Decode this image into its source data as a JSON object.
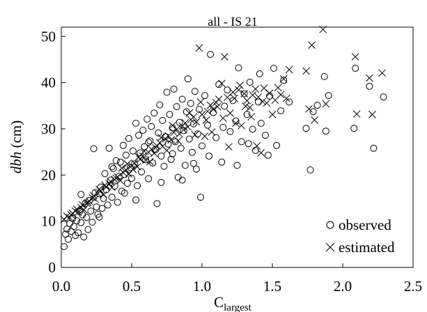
{
  "chart_data": {
    "type": "scatter",
    "title": "all - IS 21",
    "xlabel": {
      "base": "C",
      "sub": "largest"
    },
    "ylabel": {
      "italic": "dbh",
      "rest": " (cm)"
    },
    "xlim": [
      0,
      2.5
    ],
    "ylim": [
      0,
      52
    ],
    "xticks": [
      "0.0",
      "0.5",
      "1.0",
      "1.5",
      "2.0",
      "2.5"
    ],
    "yticks": [
      "0",
      "10",
      "20",
      "30",
      "40",
      "50"
    ],
    "legend": {
      "position": "bottom-right"
    },
    "series": [
      {
        "name": "observed",
        "marker": "circle",
        "points": [
          [
            0.02,
            4.5
          ],
          [
            0.03,
            7.2
          ],
          [
            0.04,
            8.3
          ],
          [
            0.05,
            6.1
          ],
          [
            0.06,
            9.5
          ],
          [
            0.07,
            7.8
          ],
          [
            0.08,
            10.6
          ],
          [
            0.09,
            8.9
          ],
          [
            0.1,
            6.9
          ],
          [
            0.11,
            10.1
          ],
          [
            0.12,
            7.5
          ],
          [
            0.13,
            12.1
          ],
          [
            0.14,
            9.7
          ],
          [
            0.15,
            11.4
          ],
          [
            0.16,
            6.6
          ],
          [
            0.17,
            13.8
          ],
          [
            0.18,
            10.8
          ],
          [
            0.19,
            8.2
          ],
          [
            0.2,
            14.5
          ],
          [
            0.21,
            12.2
          ],
          [
            0.22,
            9.8
          ],
          [
            0.23,
            25.7
          ],
          [
            0.24,
            16.2
          ],
          [
            0.25,
            13.1
          ],
          [
            0.26,
            11.5
          ],
          [
            0.27,
            15.9
          ],
          [
            0.28,
            17.4
          ],
          [
            0.29,
            12.8
          ],
          [
            0.3,
            14.9
          ],
          [
            0.31,
            20.3
          ],
          [
            0.32,
            16.8
          ],
          [
            0.33,
            13.5
          ],
          [
            0.34,
            25.8
          ],
          [
            0.35,
            18.9
          ],
          [
            0.36,
            15.2
          ],
          [
            0.37,
            21.4
          ],
          [
            0.38,
            17.6
          ],
          [
            0.39,
            23.1
          ],
          [
            0.4,
            14.1
          ],
          [
            0.41,
            19.7
          ],
          [
            0.42,
            22.8
          ],
          [
            0.43,
            16.5
          ],
          [
            0.44,
            26.4
          ],
          [
            0.45,
            20.1
          ],
          [
            0.46,
            24.3
          ],
          [
            0.47,
            18.2
          ],
          [
            0.48,
            27.9
          ],
          [
            0.49,
            21.6
          ],
          [
            0.5,
            19.3
          ],
          [
            0.51,
            25.2
          ],
          [
            0.52,
            22.4
          ],
          [
            0.53,
            31.2
          ],
          [
            0.54,
            17.7
          ],
          [
            0.55,
            28.6
          ],
          [
            0.56,
            24.8
          ],
          [
            0.57,
            20.7
          ],
          [
            0.58,
            29.7
          ],
          [
            0.59,
            26.1
          ],
          [
            0.6,
            23.3
          ],
          [
            0.61,
            32.1
          ],
          [
            0.62,
            19.2
          ],
          [
            0.63,
            27.4
          ],
          [
            0.64,
            30.5
          ],
          [
            0.65,
            22.6
          ],
          [
            0.66,
            33.4
          ],
          [
            0.67,
            25.5
          ],
          [
            0.68,
            13.8
          ],
          [
            0.69,
            29.1
          ],
          [
            0.7,
            35.2
          ],
          [
            0.71,
            24.1
          ],
          [
            0.72,
            31.8
          ],
          [
            0.73,
            21.9
          ],
          [
            0.74,
            28.3
          ],
          [
            0.75,
            37.9
          ],
          [
            0.76,
            26.7
          ],
          [
            0.77,
            33.1
          ],
          [
            0.78,
            23.4
          ],
          [
            0.79,
            30.2
          ],
          [
            0.8,
            38.6
          ],
          [
            0.81,
            27.2
          ],
          [
            0.82,
            34.8
          ],
          [
            0.83,
            19.5
          ],
          [
            0.84,
            31.4
          ],
          [
            0.85,
            25.8
          ],
          [
            0.86,
            36.4
          ],
          [
            0.87,
            29.6
          ],
          [
            0.88,
            22.1
          ],
          [
            0.89,
            33.7
          ],
          [
            0.9,
            40.8
          ],
          [
            0.91,
            27.8
          ],
          [
            0.92,
            35.5
          ],
          [
            0.93,
            24.9
          ],
          [
            0.94,
            31.1
          ],
          [
            0.95,
            38.1
          ],
          [
            0.96,
            21.3
          ],
          [
            0.97,
            28.9
          ],
          [
            0.98,
            34.2
          ],
          [
            0.99,
            15.2
          ],
          [
            1.0,
            26.3
          ],
          [
            1.02,
            37.2
          ],
          [
            1.04,
            30.8
          ],
          [
            1.06,
            46.1
          ],
          [
            1.08,
            33.5
          ],
          [
            1.1,
            28.1
          ],
          [
            1.12,
            39.6
          ],
          [
            1.14,
            22.8
          ],
          [
            1.16,
            34.9
          ],
          [
            1.18,
            38.4
          ],
          [
            1.2,
            29.4
          ],
          [
            1.22,
            36.1
          ],
          [
            1.24,
            31.7
          ],
          [
            1.26,
            43.2
          ],
          [
            1.28,
            27.2
          ],
          [
            1.3,
            37.6
          ],
          [
            1.32,
            33.1
          ],
          [
            1.34,
            40.1
          ],
          [
            1.36,
            29.9
          ],
          [
            1.38,
            25.3
          ],
          [
            1.4,
            35.8
          ],
          [
            1.42,
            31.2
          ],
          [
            1.45,
            28.6
          ],
          [
            1.48,
            37.1
          ],
          [
            1.51,
            43.1
          ],
          [
            1.53,
            26.4
          ],
          [
            1.56,
            33.9
          ],
          [
            1.58,
            40.5
          ],
          [
            1.62,
            35.8
          ],
          [
            1.74,
            30.1
          ],
          [
            1.77,
            21.1
          ],
          [
            1.79,
            33.7
          ],
          [
            1.82,
            35.1
          ],
          [
            1.87,
            41.3
          ],
          [
            1.88,
            29.5
          ],
          [
            1.9,
            37.2
          ],
          [
            2.08,
            30.1
          ],
          [
            2.09,
            43.1
          ],
          [
            2.19,
            39.2
          ],
          [
            2.22,
            25.8
          ],
          [
            2.29,
            36.9
          ],
          [
            0.14,
            15.8
          ],
          [
            0.27,
            10.9
          ],
          [
            0.36,
            21.8
          ],
          [
            0.45,
            16.1
          ],
          [
            0.53,
            14.6
          ],
          [
            0.62,
            27.1
          ],
          [
            0.71,
            18.4
          ],
          [
            0.79,
            24.6
          ],
          [
            0.86,
            18.9
          ],
          [
            0.94,
            22.5
          ],
          [
            1.05,
            24.1
          ],
          [
            1.15,
            30.3
          ],
          [
            1.25,
            22.1
          ],
          [
            1.33,
            26.8
          ],
          [
            1.41,
            41.9
          ],
          [
            1.47,
            24.3
          ]
        ]
      },
      {
        "name": "estimated",
        "marker": "x",
        "points": [
          [
            0.02,
            10.4
          ],
          [
            0.04,
            11.1
          ],
          [
            0.06,
            10.8
          ],
          [
            0.08,
            11.7
          ],
          [
            0.1,
            12.2
          ],
          [
            0.12,
            11.9
          ],
          [
            0.14,
            13.0
          ],
          [
            0.16,
            12.5
          ],
          [
            0.18,
            13.9
          ],
          [
            0.2,
            14.3
          ],
          [
            0.22,
            15.1
          ],
          [
            0.24,
            14.8
          ],
          [
            0.26,
            16.0
          ],
          [
            0.28,
            16.6
          ],
          [
            0.3,
            15.7
          ],
          [
            0.32,
            17.4
          ],
          [
            0.34,
            18.1
          ],
          [
            0.36,
            17.3
          ],
          [
            0.38,
            19.0
          ],
          [
            0.4,
            19.6
          ],
          [
            0.42,
            18.8
          ],
          [
            0.44,
            20.5
          ],
          [
            0.46,
            21.1
          ],
          [
            0.48,
            20.2
          ],
          [
            0.5,
            22.0
          ],
          [
            0.52,
            22.6
          ],
          [
            0.54,
            21.8
          ],
          [
            0.56,
            23.4
          ],
          [
            0.58,
            24.1
          ],
          [
            0.6,
            23.2
          ],
          [
            0.62,
            24.9
          ],
          [
            0.64,
            25.6
          ],
          [
            0.66,
            24.7
          ],
          [
            0.68,
            26.3
          ],
          [
            0.7,
            27.0
          ],
          [
            0.72,
            26.2
          ],
          [
            0.74,
            27.8
          ],
          [
            0.76,
            28.5
          ],
          [
            0.78,
            27.6
          ],
          [
            0.8,
            29.2
          ],
          [
            0.82,
            29.9
          ],
          [
            0.84,
            28.9
          ],
          [
            0.86,
            30.6
          ],
          [
            0.88,
            31.3
          ],
          [
            0.9,
            30.4
          ],
          [
            0.92,
            32.0
          ],
          [
            0.94,
            32.6
          ],
          [
            0.96,
            31.5
          ],
          [
            0.98,
            47.5
          ],
          [
            1.0,
            33.1
          ],
          [
            1.02,
            28.4
          ],
          [
            1.04,
            33.8
          ],
          [
            1.06,
            35.1
          ],
          [
            1.08,
            34.2
          ],
          [
            1.1,
            35.7
          ],
          [
            1.12,
            36.4
          ],
          [
            1.14,
            39.8
          ],
          [
            1.16,
            45.6
          ],
          [
            1.18,
            36.8
          ],
          [
            1.2,
            33.4
          ],
          [
            1.22,
            37.9
          ],
          [
            1.24,
            31.2
          ],
          [
            1.26,
            38.4
          ],
          [
            1.28,
            30.7
          ],
          [
            1.3,
            37.6
          ],
          [
            1.32,
            36.1
          ],
          [
            1.34,
            34.6
          ],
          [
            1.36,
            37.3
          ],
          [
            1.38,
            38.6
          ],
          [
            1.4,
            36.9
          ],
          [
            1.42,
            24.8
          ],
          [
            1.44,
            38.8
          ],
          [
            1.46,
            35.6
          ],
          [
            1.48,
            37.7
          ],
          [
            1.5,
            33.1
          ],
          [
            1.52,
            36.2
          ],
          [
            1.54,
            38.9
          ],
          [
            1.56,
            37.4
          ],
          [
            1.58,
            40.8
          ],
          [
            1.6,
            36.6
          ],
          [
            1.62,
            42.8
          ],
          [
            1.74,
            42.5
          ],
          [
            1.76,
            34.3
          ],
          [
            1.78,
            48.1
          ],
          [
            1.8,
            31.9
          ],
          [
            1.86,
            51.5
          ],
          [
            1.88,
            35.4
          ],
          [
            2.09,
            45.6
          ],
          [
            2.1,
            33.2
          ],
          [
            2.19,
            41.0
          ],
          [
            2.21,
            33.1
          ],
          [
            2.28,
            42.1
          ],
          [
            0.07,
            11.4
          ],
          [
            0.11,
            12.6
          ],
          [
            0.15,
            13.5
          ],
          [
            0.19,
            14.0
          ],
          [
            0.23,
            15.5
          ],
          [
            0.27,
            16.9
          ],
          [
            0.31,
            17.8
          ],
          [
            0.35,
            18.6
          ],
          [
            0.39,
            19.3
          ],
          [
            0.43,
            21.5
          ],
          [
            0.47,
            22.4
          ],
          [
            0.51,
            21.2
          ],
          [
            0.55,
            23.9
          ],
          [
            0.59,
            25.2
          ],
          [
            0.63,
            22.9
          ],
          [
            0.67,
            25.9
          ],
          [
            0.71,
            28.1
          ],
          [
            0.75,
            25.3
          ],
          [
            0.79,
            30.7
          ],
          [
            0.83,
            27.4
          ],
          [
            0.87,
            29.8
          ],
          [
            0.91,
            33.4
          ],
          [
            0.95,
            28.7
          ],
          [
            0.99,
            35.8
          ],
          [
            1.03,
            31.9
          ],
          [
            1.07,
            29.3
          ],
          [
            1.11,
            34.8
          ],
          [
            1.15,
            32.3
          ],
          [
            1.19,
            26.1
          ],
          [
            1.23,
            36.6
          ],
          [
            1.27,
            39.4
          ],
          [
            1.31,
            34.9
          ],
          [
            1.35,
            32.6
          ],
          [
            1.39,
            26.3
          ],
          [
            1.43,
            35.9
          ]
        ]
      }
    ]
  }
}
